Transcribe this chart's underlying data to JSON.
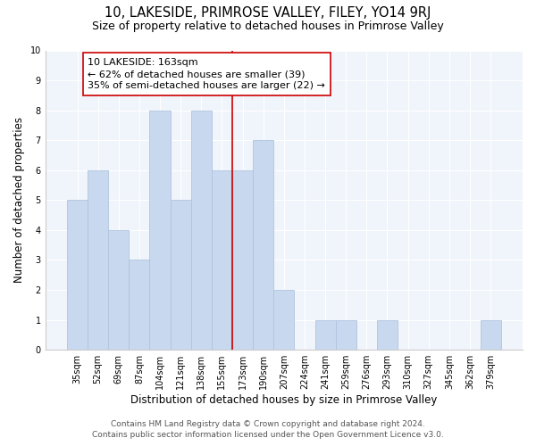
{
  "title": "10, LAKESIDE, PRIMROSE VALLEY, FILEY, YO14 9RJ",
  "subtitle": "Size of property relative to detached houses in Primrose Valley",
  "xlabel": "Distribution of detached houses by size in Primrose Valley",
  "ylabel": "Number of detached properties",
  "bar_labels": [
    "35sqm",
    "52sqm",
    "69sqm",
    "87sqm",
    "104sqm",
    "121sqm",
    "138sqm",
    "155sqm",
    "173sqm",
    "190sqm",
    "207sqm",
    "224sqm",
    "241sqm",
    "259sqm",
    "276sqm",
    "293sqm",
    "310sqm",
    "327sqm",
    "345sqm",
    "362sqm",
    "379sqm"
  ],
  "bar_values": [
    5,
    6,
    4,
    3,
    8,
    5,
    8,
    6,
    6,
    7,
    2,
    0,
    1,
    1,
    0,
    1,
    0,
    0,
    0,
    0,
    1
  ],
  "bar_color": "#c8d8ee",
  "bar_edge_color": "#b0c4de",
  "vline_x_index": 7.5,
  "vline_color": "#cc0000",
  "annotation_title": "10 LAKESIDE: 163sqm",
  "annotation_line1": "← 62% of detached houses are smaller (39)",
  "annotation_line2": "35% of semi-detached houses are larger (22) →",
  "annotation_box_facecolor": "#ffffff",
  "annotation_box_edgecolor": "#cc0000",
  "ylim": [
    0,
    10
  ],
  "yticks": [
    0,
    1,
    2,
    3,
    4,
    5,
    6,
    7,
    8,
    9,
    10
  ],
  "figure_facecolor": "#ffffff",
  "axes_facecolor": "#f0f4fb",
  "grid_color": "#ffffff",
  "spine_color": "#cccccc",
  "footer1": "Contains HM Land Registry data © Crown copyright and database right 2024.",
  "footer2": "Contains public sector information licensed under the Open Government Licence v3.0.",
  "title_fontsize": 10.5,
  "subtitle_fontsize": 9,
  "axis_label_fontsize": 8.5,
  "tick_fontsize": 7,
  "annotation_fontsize": 8,
  "footer_fontsize": 6.5
}
